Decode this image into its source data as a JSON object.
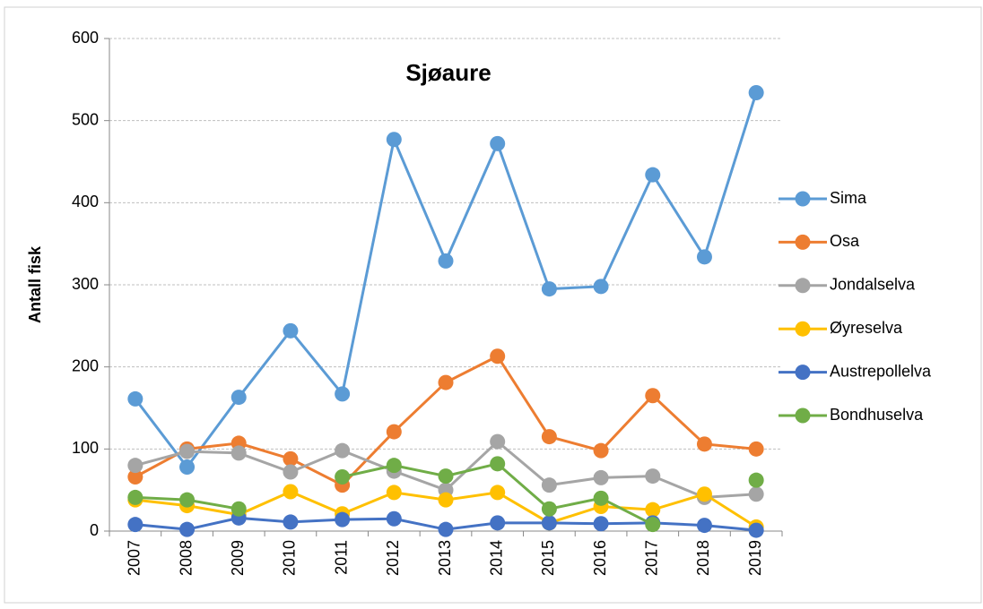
{
  "chart_data": {
    "type": "line",
    "title": "Sjøaure",
    "y_label": "Antall fisk",
    "categories": [
      "2007",
      "2008",
      "2009",
      "2010",
      "2011",
      "2012",
      "2013",
      "2014",
      "2015",
      "2016",
      "2017",
      "2018",
      "2019"
    ],
    "series": [
      {
        "name": "Sima",
        "color": "#5b9bd5",
        "values": [
          161,
          78,
          163,
          244,
          167,
          477,
          329,
          472,
          295,
          298,
          434,
          334,
          534
        ]
      },
      {
        "name": "Osa",
        "color": "#ed7d31",
        "values": [
          66,
          100,
          107,
          88,
          56,
          121,
          181,
          213,
          115,
          98,
          165,
          106,
          100
        ]
      },
      {
        "name": "Jondalselva",
        "color": "#a5a5a5",
        "values": [
          80,
          97,
          95,
          72,
          98,
          73,
          50,
          109,
          56,
          65,
          67,
          41,
          45
        ]
      },
      {
        "name": "Øyreselva",
        "color": "#ffc000",
        "values": [
          38,
          31,
          20,
          48,
          21,
          47,
          38,
          47,
          10,
          30,
          26,
          45,
          5
        ]
      },
      {
        "name": "Austrepollelva",
        "color": "#4472c4",
        "values": [
          8,
          2,
          16,
          11,
          14,
          15,
          2,
          10,
          10,
          9,
          10,
          7,
          1
        ]
      },
      {
        "name": "Bondhuselva",
        "color": "#70ad47",
        "values": [
          41,
          38,
          27,
          null,
          66,
          80,
          67,
          82,
          27,
          40,
          8,
          null,
          62
        ]
      }
    ],
    "ylim": [
      0,
      600
    ],
    "yticks": [
      0,
      100,
      200,
      300,
      400,
      500,
      600
    ],
    "grid": true,
    "legend": "right"
  }
}
